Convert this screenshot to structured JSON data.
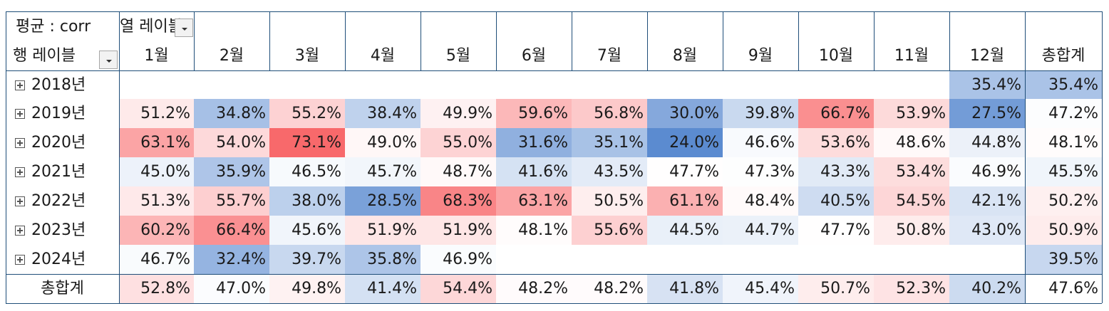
{
  "pivot": {
    "value_field_label": "평균 : corr",
    "column_labels_caption": "열 레이블",
    "row_labels_caption": "행 레이블",
    "dropdown_icon": "chevron-down-icon",
    "expand_icon": "plus-box-icon",
    "color_scale": {
      "low": "#5b8bd0",
      "mid": "#ffffff",
      "high": "#f8696b",
      "low_value": 24.0,
      "mid_value": 47.6,
      "high_value": 73.1
    },
    "months": [
      "1월",
      "2월",
      "3월",
      "4월",
      "5월",
      "6월",
      "7월",
      "8월",
      "9월",
      "10월",
      "11월",
      "12월"
    ],
    "grand_total_label": "총합계",
    "rows": [
      {
        "label": "2018년",
        "values": [
          "",
          "",
          "",
          "",
          "",
          "",
          "",
          "",
          "",
          "",
          "",
          "35.4%"
        ],
        "total": "35.4%"
      },
      {
        "label": "2019년",
        "values": [
          "51.2%",
          "34.8%",
          "55.2%",
          "38.4%",
          "49.9%",
          "59.6%",
          "56.8%",
          "30.0%",
          "39.8%",
          "66.7%",
          "53.9%",
          "27.5%"
        ],
        "total": "47.2%"
      },
      {
        "label": "2020년",
        "values": [
          "63.1%",
          "54.0%",
          "73.1%",
          "49.0%",
          "55.0%",
          "31.6%",
          "35.1%",
          "24.0%",
          "46.6%",
          "53.6%",
          "48.6%",
          "44.8%"
        ],
        "total": "48.1%"
      },
      {
        "label": "2021년",
        "values": [
          "45.0%",
          "35.9%",
          "46.5%",
          "45.7%",
          "48.7%",
          "41.6%",
          "43.5%",
          "47.7%",
          "47.3%",
          "43.3%",
          "53.4%",
          "46.9%"
        ],
        "total": "45.5%"
      },
      {
        "label": "2022년",
        "values": [
          "51.3%",
          "55.7%",
          "38.0%",
          "28.5%",
          "68.3%",
          "63.1%",
          "50.5%",
          "61.1%",
          "48.4%",
          "40.5%",
          "54.5%",
          "42.1%"
        ],
        "total": "50.2%"
      },
      {
        "label": "2023년",
        "values": [
          "60.2%",
          "66.4%",
          "45.6%",
          "51.9%",
          "51.9%",
          "48.1%",
          "55.6%",
          "44.5%",
          "44.7%",
          "47.7%",
          "50.8%",
          "43.0%"
        ],
        "total": "50.9%"
      },
      {
        "label": "2024년",
        "values": [
          "46.7%",
          "32.4%",
          "39.7%",
          "35.8%",
          "46.9%",
          "",
          "",
          "",
          "",
          "",
          "",
          ""
        ],
        "total": "39.5%"
      }
    ],
    "grand_total_row": {
      "label": "총합계",
      "values": [
        "52.8%",
        "47.0%",
        "49.8%",
        "41.4%",
        "54.4%",
        "48.2%",
        "48.2%",
        "41.8%",
        "45.4%",
        "50.7%",
        "52.3%",
        "40.2%"
      ],
      "total": "47.6%"
    }
  }
}
